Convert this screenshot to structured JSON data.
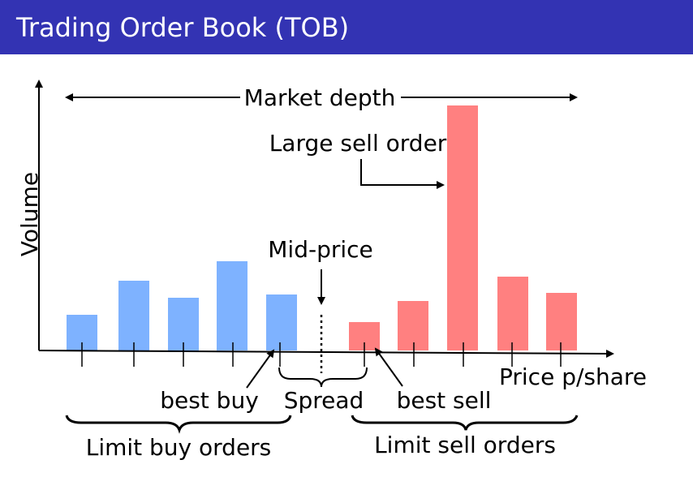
{
  "header": {
    "title": "Trading Order Book (TOB)",
    "background": "#3333b3"
  },
  "diagram": {
    "colors": {
      "buy": "#7eb2ff",
      "sell": "#ff8080"
    },
    "labels": {
      "y_axis": "Volume",
      "x_axis": "Price p/share",
      "market_depth": "Market depth",
      "large_sell_order": "Large sell order",
      "mid_price": "Mid-price",
      "best_buy": "best buy",
      "spread": "Spread",
      "best_sell": "best sell",
      "limit_buy_orders": "Limit buy orders",
      "limit_sell_orders": "Limit sell orders"
    },
    "buy_volumes": [
      44,
      86,
      65,
      110,
      69
    ],
    "sell_volumes": [
      35,
      61,
      302,
      91,
      71
    ]
  }
}
